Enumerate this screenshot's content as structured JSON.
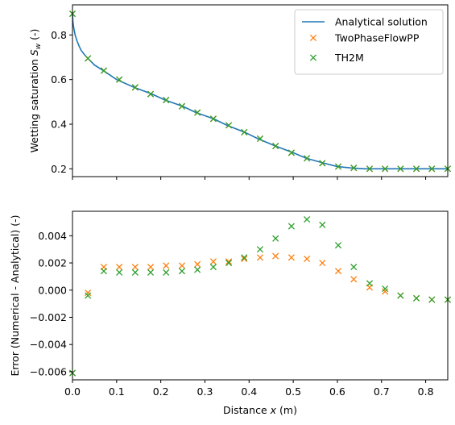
{
  "chart_data": [
    {
      "type": "line",
      "ylabel": "Wetting saturation S_w (-)",
      "ylabel_parts": [
        "Wetting saturation ",
        "S",
        "w",
        " (-)"
      ],
      "xlim": [
        0,
        0.85
      ],
      "ylim": [
        0.165,
        0.935
      ],
      "yticks": [
        0.2,
        0.4,
        0.6,
        0.8
      ],
      "ytick_labels": [
        "0.2",
        "0.4",
        "0.6",
        "0.8"
      ],
      "legend_placement": "upper-right",
      "series": [
        {
          "name": "Analytical solution",
          "style": "line",
          "color": "#1f77b4",
          "x": [
            0.0,
            0.001,
            0.003,
            0.006,
            0.01,
            0.015,
            0.02,
            0.03,
            0.035,
            0.05,
            0.07,
            0.1,
            0.14,
            0.18,
            0.21,
            0.25,
            0.28,
            0.32,
            0.35,
            0.39,
            0.42,
            0.46,
            0.5,
            0.53,
            0.57,
            0.6,
            0.63,
            0.66,
            0.69,
            0.71,
            0.85
          ],
          "y": [
            0.895,
            0.86,
            0.83,
            0.8,
            0.775,
            0.75,
            0.73,
            0.705,
            0.695,
            0.665,
            0.64,
            0.6,
            0.565,
            0.535,
            0.508,
            0.48,
            0.452,
            0.424,
            0.395,
            0.364,
            0.335,
            0.302,
            0.272,
            0.247,
            0.225,
            0.21,
            0.204,
            0.2,
            0.2,
            0.2,
            0.2
          ]
        },
        {
          "name": "TwoPhaseFlowPP",
          "style": "x-marker",
          "color": "#ff7f0e",
          "x": [
            0.0,
            0.035,
            0.071,
            0.106,
            0.142,
            0.177,
            0.212,
            0.248,
            0.283,
            0.319,
            0.354,
            0.389,
            0.425,
            0.46,
            0.496,
            0.531,
            0.566,
            0.602,
            0.637,
            0.673,
            0.708,
            0.743,
            0.779,
            0.814,
            0.85
          ],
          "y": [
            0.895,
            0.695,
            0.64,
            0.6,
            0.565,
            0.535,
            0.508,
            0.48,
            0.452,
            0.424,
            0.395,
            0.364,
            0.335,
            0.302,
            0.272,
            0.247,
            0.225,
            0.21,
            0.204,
            0.2,
            0.2,
            0.2,
            0.2,
            0.2,
            0.2
          ]
        },
        {
          "name": "TH2M",
          "style": "x-marker",
          "color": "#2ca02c",
          "x": [
            0.0,
            0.035,
            0.071,
            0.106,
            0.142,
            0.177,
            0.212,
            0.248,
            0.283,
            0.319,
            0.354,
            0.389,
            0.425,
            0.46,
            0.496,
            0.531,
            0.566,
            0.602,
            0.637,
            0.673,
            0.708,
            0.743,
            0.779,
            0.814,
            0.85
          ],
          "y": [
            0.895,
            0.695,
            0.64,
            0.6,
            0.565,
            0.535,
            0.508,
            0.48,
            0.452,
            0.424,
            0.395,
            0.364,
            0.335,
            0.302,
            0.272,
            0.247,
            0.225,
            0.21,
            0.204,
            0.2,
            0.2,
            0.2,
            0.2,
            0.2,
            0.2
          ]
        }
      ]
    },
    {
      "type": "scatter",
      "ylabel": "Error (Numerical - Analytical) (-)",
      "xlabel": "Distance x (m)",
      "xlabel_parts": [
        "Distance ",
        "x",
        " (m)"
      ],
      "xlim": [
        0,
        0.85
      ],
      "ylim": [
        -0.0066,
        0.0058
      ],
      "xticks": [
        0.0,
        0.1,
        0.2,
        0.3,
        0.4,
        0.5,
        0.6,
        0.7,
        0.8
      ],
      "xtick_labels": [
        "0.0",
        "0.1",
        "0.2",
        "0.3",
        "0.4",
        "0.5",
        "0.6",
        "0.7",
        "0.8"
      ],
      "yticks": [
        -0.006,
        -0.004,
        -0.002,
        0.0,
        0.002,
        0.004
      ],
      "ytick_labels": [
        "−0.006",
        "−0.004",
        "−0.002",
        "0.000",
        "0.002",
        "0.004"
      ],
      "series": [
        {
          "name": "TwoPhaseFlowPP",
          "color": "#ff7f0e",
          "x": [
            0.0,
            0.035,
            0.071,
            0.106,
            0.142,
            0.177,
            0.212,
            0.248,
            0.283,
            0.319,
            0.354,
            0.389,
            0.425,
            0.46,
            0.496,
            0.531,
            0.566,
            0.602,
            0.637,
            0.673,
            0.708,
            0.743,
            0.779,
            0.814,
            0.85
          ],
          "y": [
            -0.0061,
            -0.0002,
            0.0017,
            0.0017,
            0.0017,
            0.0017,
            0.0018,
            0.0018,
            0.0019,
            0.0021,
            0.0021,
            0.0023,
            0.0024,
            0.0025,
            0.0024,
            0.0023,
            0.002,
            0.0014,
            0.0008,
            0.0002,
            -0.0001,
            -0.0004,
            -0.0006,
            -0.0007,
            -0.0007
          ]
        },
        {
          "name": "TH2M",
          "color": "#2ca02c",
          "x": [
            0.0,
            0.035,
            0.071,
            0.106,
            0.142,
            0.177,
            0.212,
            0.248,
            0.283,
            0.319,
            0.354,
            0.389,
            0.425,
            0.46,
            0.496,
            0.531,
            0.566,
            0.602,
            0.637,
            0.673,
            0.708,
            0.743,
            0.779,
            0.814,
            0.85
          ],
          "y": [
            -0.0061,
            -0.0004,
            0.0014,
            0.0013,
            0.0013,
            0.0013,
            0.0013,
            0.0014,
            0.0015,
            0.0017,
            0.002,
            0.0024,
            0.003,
            0.0038,
            0.0047,
            0.0052,
            0.0048,
            0.0033,
            0.0017,
            0.0005,
            0.0001,
            -0.0004,
            -0.0006,
            -0.0007,
            -0.0007
          ]
        }
      ]
    }
  ]
}
